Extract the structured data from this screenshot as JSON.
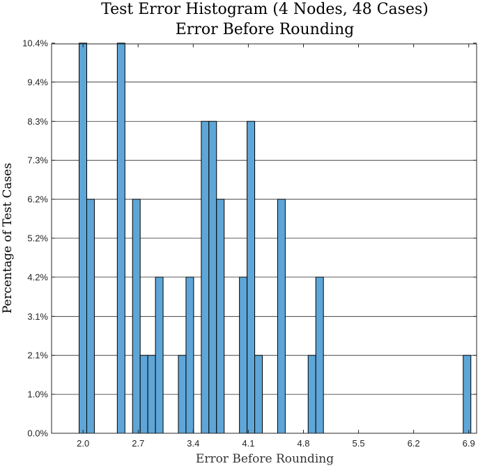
{
  "chart_data": {
    "type": "bar",
    "title": "Test Error Histogram (4 Nodes, 48 Cases)",
    "subtitle": "Error Before Rounding",
    "xlabel": "Error Before Rounding",
    "ylabel": "Percentage of Test Cases",
    "xlim": [
      1.6,
      7.0
    ],
    "ylim": [
      0,
      10.4
    ],
    "xticks": [
      {
        "value": 2.0,
        "label": "2.0"
      },
      {
        "value": 2.7,
        "label": "2.7"
      },
      {
        "value": 3.4,
        "label": "3.4"
      },
      {
        "value": 4.1,
        "label": "4.1"
      },
      {
        "value": 4.8,
        "label": "4.8"
      },
      {
        "value": 5.5,
        "label": "5.5"
      },
      {
        "value": 6.2,
        "label": "6.2"
      },
      {
        "value": 6.9,
        "label": "6.9"
      }
    ],
    "yticks": [
      {
        "value": 0.0,
        "label": "0.0%"
      },
      {
        "value": 1.04,
        "label": "1.0%"
      },
      {
        "value": 2.08,
        "label": "2.1%"
      },
      {
        "value": 3.12,
        "label": "3.1%"
      },
      {
        "value": 4.17,
        "label": "4.2%"
      },
      {
        "value": 5.21,
        "label": "5.2%"
      },
      {
        "value": 6.25,
        "label": "6.2%"
      },
      {
        "value": 7.29,
        "label": "7.3%"
      },
      {
        "value": 8.33,
        "label": "8.3%"
      },
      {
        "value": 9.38,
        "label": "9.4%"
      },
      {
        "value": 10.42,
        "label": "10.4%"
      }
    ],
    "bin_width": 0.097,
    "bins": [
      {
        "x": 1.95,
        "value": 10.42
      },
      {
        "x": 2.047,
        "value": 6.25
      },
      {
        "x": 2.435,
        "value": 10.42
      },
      {
        "x": 2.629,
        "value": 6.25
      },
      {
        "x": 2.726,
        "value": 2.08
      },
      {
        "x": 2.823,
        "value": 2.08
      },
      {
        "x": 2.92,
        "value": 4.17
      },
      {
        "x": 3.211,
        "value": 2.08
      },
      {
        "x": 3.308,
        "value": 4.17
      },
      {
        "x": 3.502,
        "value": 8.33
      },
      {
        "x": 3.599,
        "value": 8.33
      },
      {
        "x": 3.696,
        "value": 6.25
      },
      {
        "x": 3.987,
        "value": 4.17
      },
      {
        "x": 4.084,
        "value": 8.33
      },
      {
        "x": 4.181,
        "value": 2.08
      },
      {
        "x": 4.472,
        "value": 6.25
      },
      {
        "x": 4.86,
        "value": 2.08
      },
      {
        "x": 4.957,
        "value": 4.17
      },
      {
        "x": 6.83,
        "value": 2.08
      }
    ],
    "bar_color": "#5ea6d8",
    "grid": "horizontal"
  }
}
